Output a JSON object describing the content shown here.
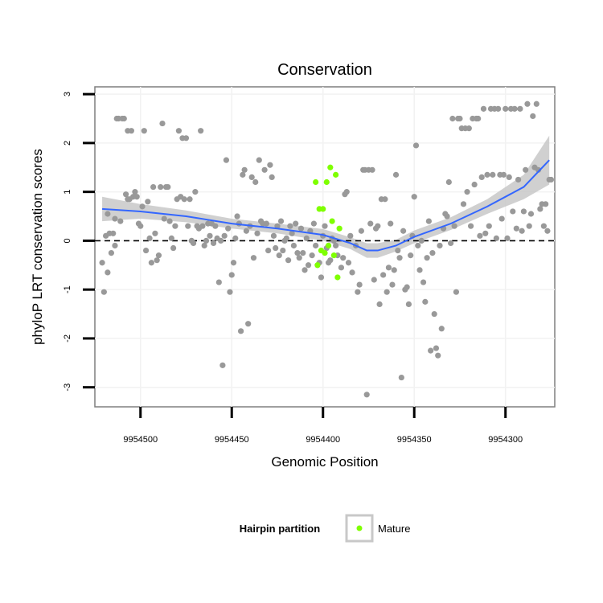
{
  "chart_data": {
    "type": "scatter",
    "title": "Conservation",
    "xlabel": "Genomic Position",
    "ylabel": "phyloP LRT conservation scores",
    "x_reversed": true,
    "xlim": [
      9954525,
      9954273
    ],
    "ylim": [
      -3.4,
      3.15
    ],
    "x_ticks": [
      9954500,
      9954450,
      9954400,
      9954350,
      9954300
    ],
    "y_ticks": [
      -3,
      -2,
      -1,
      0,
      1,
      2,
      3
    ],
    "reference_line": {
      "y": 0,
      "style": "dashed"
    },
    "grid": true,
    "legend": {
      "title": "Hairpin partition",
      "position": "bottom",
      "entries": [
        "Mature"
      ]
    },
    "colors": {
      "points": "#999999",
      "mature": "#7fff00",
      "smooth": "#3366ff",
      "band": "#c8c8c8"
    },
    "series": [
      {
        "name": "",
        "color": "#999999",
        "points": [
          [
            9954521,
            -0.45
          ],
          [
            9954520,
            -1.05
          ],
          [
            9954519,
            0.1
          ],
          [
            9954518,
            -0.65
          ],
          [
            9954518,
            0.55
          ],
          [
            9954517,
            0.15
          ],
          [
            9954516,
            -0.25
          ],
          [
            9954515,
            0.15
          ],
          [
            9954514,
            -0.1
          ],
          [
            9954514,
            0.45
          ],
          [
            9954513,
            2.5
          ],
          [
            9954512,
            2.5
          ],
          [
            9954511,
            0.4
          ],
          [
            9954510,
            2.5
          ],
          [
            9954509,
            2.5
          ],
          [
            9954508,
            0.95
          ],
          [
            9954507,
            2.25
          ],
          [
            9954507,
            0.85
          ],
          [
            9954506,
            0.85
          ],
          [
            9954505,
            2.25
          ],
          [
            9954504,
            0.9
          ],
          [
            9954503,
            1.0
          ],
          [
            9954502,
            0.9
          ],
          [
            9954501,
            0.35
          ],
          [
            9954500,
            0.3
          ],
          [
            9954499,
            0.7
          ],
          [
            9954498,
            2.25
          ],
          [
            9954497,
            -0.2
          ],
          [
            9954496,
            0.8
          ],
          [
            9954495,
            0.05
          ],
          [
            9954494,
            -0.45
          ],
          [
            9954493,
            1.1
          ],
          [
            9954492,
            0.15
          ],
          [
            9954491,
            -0.4
          ],
          [
            9954490,
            -0.3
          ],
          [
            9954489,
            1.1
          ],
          [
            9954488,
            2.4
          ],
          [
            9954487,
            0.45
          ],
          [
            9954486,
            1.1
          ],
          [
            9954485,
            1.1
          ],
          [
            9954484,
            0.4
          ],
          [
            9954483,
            0.05
          ],
          [
            9954482,
            -0.15
          ],
          [
            9954481,
            0.3
          ],
          [
            9954480,
            0.85
          ],
          [
            9954479,
            2.25
          ],
          [
            9954478,
            0.9
          ],
          [
            9954477,
            2.1
          ],
          [
            9954476,
            0.85
          ],
          [
            9954475,
            2.1
          ],
          [
            9954474,
            0.3
          ],
          [
            9954473,
            0.85
          ],
          [
            9954472,
            0.0
          ],
          [
            9954471,
            -0.05
          ],
          [
            9954470,
            1.0
          ],
          [
            9954469,
            0.3
          ],
          [
            9954468,
            0.25
          ],
          [
            9954467,
            2.25
          ],
          [
            9954466,
            0.3
          ],
          [
            9954465,
            -0.1
          ],
          [
            9954464,
            0.0
          ],
          [
            9954463,
            0.35
          ],
          [
            9954462,
            0.1
          ],
          [
            9954461,
            0.35
          ],
          [
            9954460,
            -0.05
          ],
          [
            9954459,
            0.3
          ],
          [
            9954458,
            0.05
          ],
          [
            9954457,
            -0.85
          ],
          [
            9954456,
            0.0
          ],
          [
            9954455,
            -2.55
          ],
          [
            9954454,
            0.1
          ],
          [
            9954453,
            1.65
          ],
          [
            9954452,
            0.25
          ],
          [
            9954451,
            -1.05
          ],
          [
            9954450,
            -0.7
          ],
          [
            9954449,
            -0.45
          ],
          [
            9954448,
            0.05
          ],
          [
            9954447,
            0.5
          ],
          [
            9954446,
            0.35
          ],
          [
            9954445,
            -1.85
          ],
          [
            9954444,
            1.35
          ],
          [
            9954443,
            1.45
          ],
          [
            9954442,
            0.2
          ],
          [
            9954441,
            -1.7
          ],
          [
            9954440,
            0.3
          ],
          [
            9954439,
            1.3
          ],
          [
            9954438,
            -0.35
          ],
          [
            9954437,
            1.2
          ],
          [
            9954436,
            0.15
          ],
          [
            9954435,
            1.65
          ],
          [
            9954434,
            0.4
          ],
          [
            9954433,
            0.35
          ],
          [
            9954432,
            1.45
          ],
          [
            9954431,
            0.35
          ],
          [
            9954430,
            -0.2
          ],
          [
            9954429,
            1.55
          ],
          [
            9954428,
            1.3
          ],
          [
            9954427,
            0.1
          ],
          [
            9954426,
            -0.15
          ],
          [
            9954425,
            0.3
          ],
          [
            9954424,
            -0.3
          ],
          [
            9954423,
            0.4
          ],
          [
            9954422,
            -0.2
          ],
          [
            9954421,
            0.0
          ],
          [
            9954420,
            0.05
          ],
          [
            9954419,
            -0.4
          ],
          [
            9954418,
            0.3
          ],
          [
            9954417,
            0.15
          ],
          [
            9954416,
            -0.1
          ],
          [
            9954415,
            0.35
          ],
          [
            9954414,
            -0.25
          ],
          [
            9954413,
            -0.35
          ],
          [
            9954412,
            0.25
          ],
          [
            9954411,
            -0.25
          ],
          [
            9954410,
            -0.6
          ],
          [
            9954409,
            0.05
          ],
          [
            9954408,
            -0.5
          ],
          [
            9954407,
            0.2
          ],
          [
            9954406,
            -0.3
          ],
          [
            9954405,
            0.35
          ],
          [
            9954404,
            -0.1
          ],
          [
            9954403,
            -0.5
          ],
          [
            9954402,
            -0.45
          ],
          [
            9954401,
            -0.75
          ],
          [
            9954400,
            0.1
          ],
          [
            9954399,
            0.3
          ],
          [
            9954398,
            -0.15
          ],
          [
            9954397,
            -0.45
          ],
          [
            9954396,
            -0.4
          ],
          [
            9954395,
            0.05
          ],
          [
            9954394,
            0.0
          ],
          [
            9954393,
            -0.1
          ],
          [
            9954392,
            -0.3
          ],
          [
            9954390,
            -0.55
          ],
          [
            9954389,
            -0.35
          ],
          [
            9954388,
            0.95
          ],
          [
            9954387,
            1.0
          ],
          [
            9954386,
            -0.45
          ],
          [
            9954385,
            0.1
          ],
          [
            9954384,
            -0.65
          ],
          [
            9954382,
            -0.1
          ],
          [
            9954381,
            -1.05
          ],
          [
            9954380,
            -0.9
          ],
          [
            9954379,
            0.2
          ],
          [
            9954378,
            1.45
          ],
          [
            9954377,
            1.45
          ],
          [
            9954376,
            -3.15
          ],
          [
            9954375,
            1.45
          ],
          [
            9954374,
            0.35
          ],
          [
            9954373,
            1.45
          ],
          [
            9954372,
            -0.8
          ],
          [
            9954371,
            0.25
          ],
          [
            9954370,
            0.3
          ],
          [
            9954369,
            -1.3
          ],
          [
            9954368,
            0.85
          ],
          [
            9954367,
            -0.7
          ],
          [
            9954366,
            0.85
          ],
          [
            9954365,
            -1.05
          ],
          [
            9954364,
            -0.55
          ],
          [
            9954363,
            0.35
          ],
          [
            9954362,
            -0.9
          ],
          [
            9954361,
            -0.6
          ],
          [
            9954360,
            1.35
          ],
          [
            9954359,
            -0.2
          ],
          [
            9954358,
            -0.35
          ],
          [
            9954357,
            -2.8
          ],
          [
            9954356,
            0.2
          ],
          [
            9954355,
            -1.0
          ],
          [
            9954354,
            -0.95
          ],
          [
            9954353,
            -1.3
          ],
          [
            9954352,
            -0.3
          ],
          [
            9954351,
            0.1
          ],
          [
            9954350,
            0.9
          ],
          [
            9954349,
            1.95
          ],
          [
            9954348,
            -0.1
          ],
          [
            9954347,
            -0.6
          ],
          [
            9954346,
            0.0
          ],
          [
            9954345,
            -0.85
          ],
          [
            9954344,
            -1.25
          ],
          [
            9954343,
            -0.35
          ],
          [
            9954342,
            0.4
          ],
          [
            9954341,
            -2.25
          ],
          [
            9954340,
            -0.25
          ],
          [
            9954339,
            -1.5
          ],
          [
            9954338,
            -2.2
          ],
          [
            9954337,
            -2.35
          ],
          [
            9954336,
            -0.1
          ],
          [
            9954335,
            -1.8
          ],
          [
            9954334,
            0.25
          ],
          [
            9954333,
            0.55
          ],
          [
            9954332,
            0.5
          ],
          [
            9954331,
            1.2
          ],
          [
            9954330,
            -0.05
          ],
          [
            9954329,
            2.5
          ],
          [
            9954328,
            0.3
          ],
          [
            9954327,
            -1.05
          ],
          [
            9954326,
            2.5
          ],
          [
            9954325,
            2.5
          ],
          [
            9954324,
            2.3
          ],
          [
            9954323,
            0.75
          ],
          [
            9954322,
            2.3
          ],
          [
            9954321,
            1.0
          ],
          [
            9954320,
            2.3
          ],
          [
            9954319,
            0.3
          ],
          [
            9954318,
            2.5
          ],
          [
            9954317,
            1.15
          ],
          [
            9954316,
            2.5
          ],
          [
            9954315,
            2.5
          ],
          [
            9954314,
            0.1
          ],
          [
            9954313,
            1.3
          ],
          [
            9954312,
            2.7
          ],
          [
            9954311,
            0.15
          ],
          [
            9954310,
            1.35
          ],
          [
            9954309,
            0.3
          ],
          [
            9954308,
            2.7
          ],
          [
            9954307,
            1.35
          ],
          [
            9954306,
            2.7
          ],
          [
            9954305,
            0.05
          ],
          [
            9954304,
            2.7
          ],
          [
            9954303,
            1.35
          ],
          [
            9954302,
            0.45
          ],
          [
            9954301,
            1.35
          ],
          [
            9954300,
            2.7
          ],
          [
            9954299,
            0.05
          ],
          [
            9954298,
            1.3
          ],
          [
            9954297,
            2.7
          ],
          [
            9954296,
            0.6
          ],
          [
            9954295,
            2.7
          ],
          [
            9954294,
            0.25
          ],
          [
            9954293,
            1.25
          ],
          [
            9954292,
            2.7
          ],
          [
            9954291,
            0.2
          ],
          [
            9954290,
            0.6
          ],
          [
            9954289,
            1.45
          ],
          [
            9954288,
            2.8
          ],
          [
            9954287,
            0.3
          ],
          [
            9954286,
            0.55
          ],
          [
            9954285,
            2.55
          ],
          [
            9954284,
            1.5
          ],
          [
            9954283,
            2.8
          ],
          [
            9954282,
            1.45
          ],
          [
            9954281,
            0.65
          ],
          [
            9954280,
            0.75
          ],
          [
            9954279,
            0.3
          ],
          [
            9954278,
            0.75
          ],
          [
            9954277,
            0.2
          ],
          [
            9954276,
            1.25
          ],
          [
            9954275,
            1.25
          ]
        ]
      },
      {
        "name": "Mature",
        "color": "#7fff00",
        "points": [
          [
            9954404,
            1.2
          ],
          [
            9954402,
            0.65
          ],
          [
            9954401,
            -0.2
          ],
          [
            9954400,
            0.65
          ],
          [
            9954399,
            -0.25
          ],
          [
            9954398,
            1.2
          ],
          [
            9954397,
            -0.1
          ],
          [
            9954396,
            1.5
          ],
          [
            9954395,
            0.4
          ],
          [
            9954394,
            -0.3
          ],
          [
            9954393,
            1.35
          ],
          [
            9954392,
            -0.75
          ],
          [
            9954391,
            0.25
          ],
          [
            9954403,
            -0.5
          ]
        ]
      }
    ],
    "smooth": [
      [
        9954521,
        0.65
      ],
      [
        9954500,
        0.6
      ],
      [
        9954475,
        0.5
      ],
      [
        9954450,
        0.35
      ],
      [
        9954425,
        0.25
      ],
      [
        9954400,
        0.12
      ],
      [
        9954385,
        -0.05
      ],
      [
        9954376,
        -0.2
      ],
      [
        9954370,
        -0.2
      ],
      [
        9954360,
        -0.1
      ],
      [
        9954350,
        0.08
      ],
      [
        9954330,
        0.35
      ],
      [
        9954310,
        0.7
      ],
      [
        9954290,
        1.1
      ],
      [
        9954276,
        1.65
      ]
    ],
    "smooth_band": [
      [
        9954521,
        0.4,
        0.9
      ],
      [
        9954500,
        0.45,
        0.75
      ],
      [
        9954475,
        0.38,
        0.62
      ],
      [
        9954450,
        0.25,
        0.45
      ],
      [
        9954425,
        0.15,
        0.35
      ],
      [
        9954400,
        0.0,
        0.24
      ],
      [
        9954385,
        -0.17,
        0.07
      ],
      [
        9954376,
        -0.35,
        -0.05
      ],
      [
        9954370,
        -0.35,
        -0.05
      ],
      [
        9954360,
        -0.22,
        0.02
      ],
      [
        9954350,
        -0.05,
        0.21
      ],
      [
        9954330,
        0.22,
        0.48
      ],
      [
        9954310,
        0.55,
        0.85
      ],
      [
        9954290,
        0.85,
        1.35
      ],
      [
        9954276,
        1.15,
        2.15
      ]
    ]
  }
}
